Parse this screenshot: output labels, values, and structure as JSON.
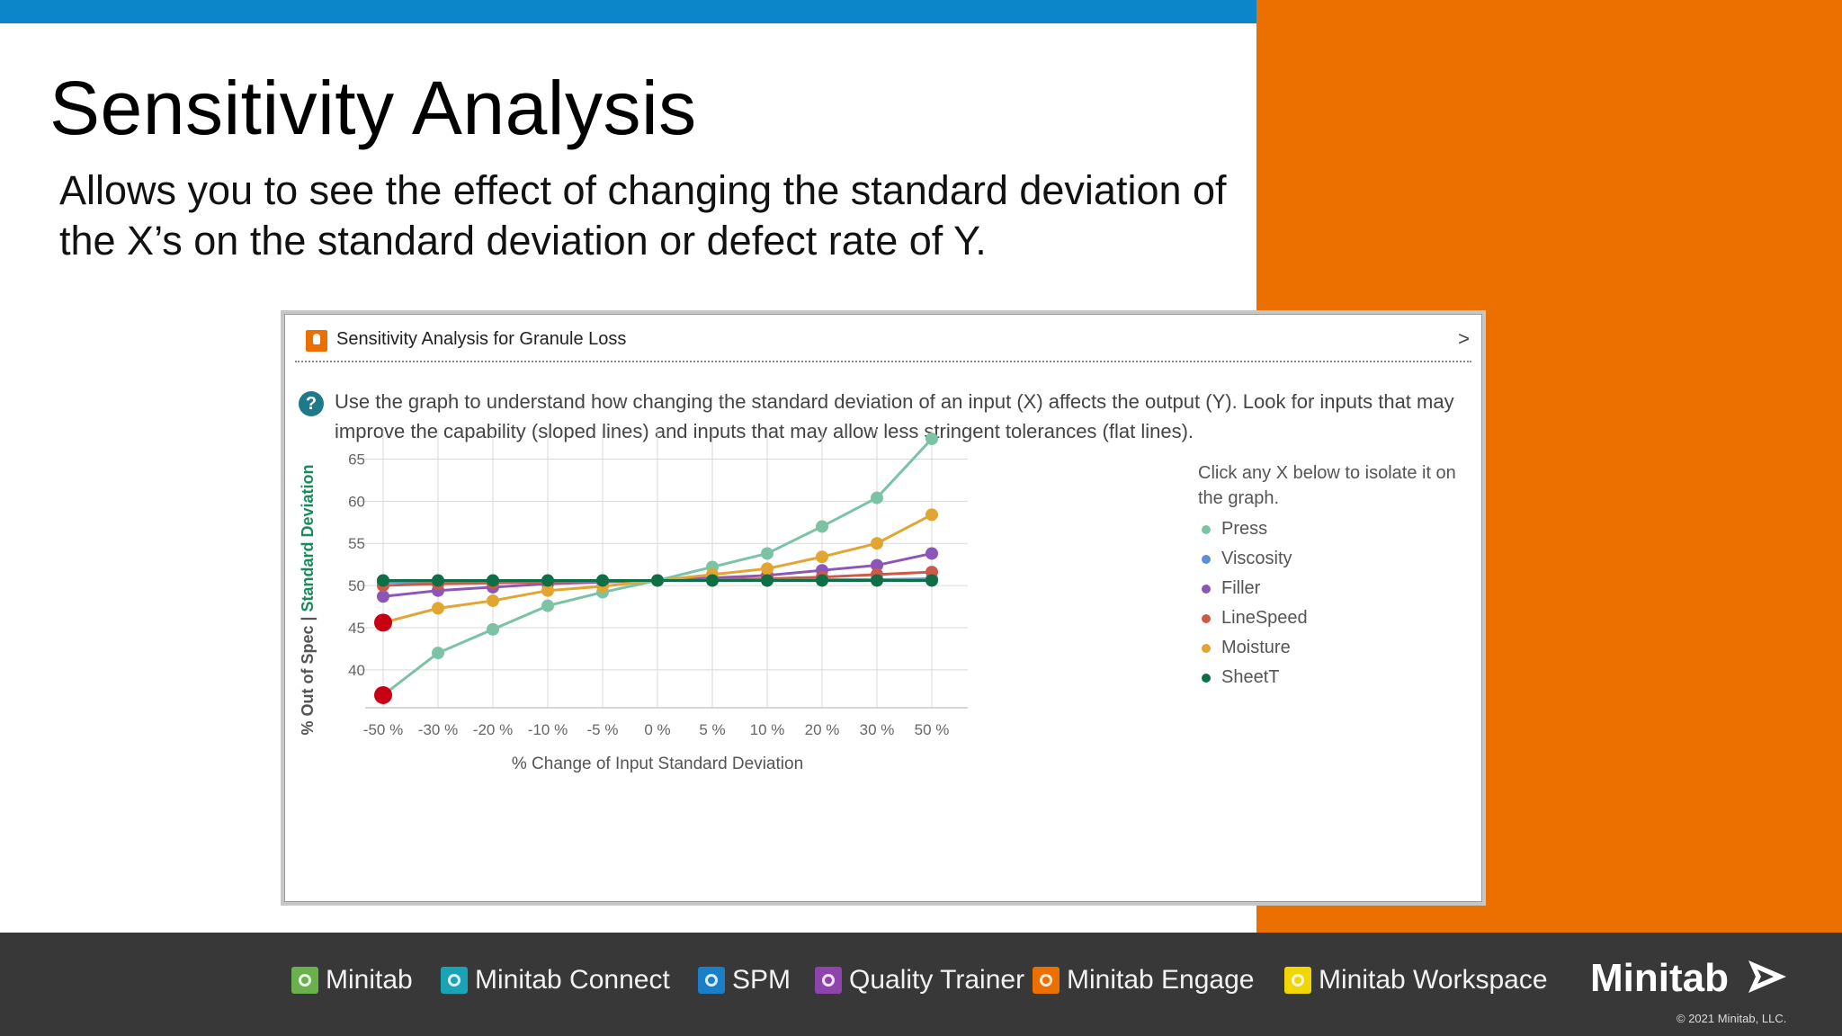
{
  "slide": {
    "title": "Sensitivity Analysis",
    "subtitle": "Allows you to see the effect of changing the standard deviation of the X’s on the standard deviation or defect rate of Y."
  },
  "panel": {
    "title": "Sensitivity Analysis for Granule Loss",
    "help_text": "Use the graph to understand how changing the standard deviation of an input (X) affects the output (Y).  Look for inputs that may improve the capability (sloped lines) and inputs that may allow less stringent tolerances (flat lines).",
    "chevron": ">"
  },
  "legend": {
    "title": "Click any X below to isolate it on the graph.",
    "items": [
      "Press",
      "Viscosity",
      "Filler",
      "LineSpeed",
      "Moisture",
      "SheetT"
    ]
  },
  "chart_data": {
    "type": "line",
    "x": [
      "-50 %",
      "-30 %",
      "-20 %",
      "-10 %",
      "-5 %",
      "0 %",
      "5 %",
      "10 %",
      "20 %",
      "30 %",
      "50 %"
    ],
    "xlabel": "% Change of Input Standard Deviation",
    "ylabel_left": "% Out of Spec |",
    "ylabel_right": "Standard Deviation",
    "yticks": [
      40,
      45,
      50,
      55,
      60,
      65
    ],
    "ylim": [
      35.5,
      67.5
    ],
    "grid": true,
    "legend_position": "right",
    "series": [
      {
        "name": "Press",
        "color": "#7cc3a6",
        "values": [
          37.0,
          42.0,
          44.8,
          47.6,
          49.2,
          50.6,
          52.2,
          53.8,
          57.0,
          60.4,
          67.4
        ]
      },
      {
        "name": "Viscosity",
        "color": "#5b8fd6",
        "values": [
          50.4,
          50.4,
          50.4,
          50.5,
          50.5,
          50.6,
          50.6,
          50.6,
          50.7,
          50.7,
          50.8
        ]
      },
      {
        "name": "Filler",
        "color": "#8b56b8",
        "values": [
          48.7,
          49.4,
          49.8,
          50.2,
          50.4,
          50.6,
          50.9,
          51.2,
          51.8,
          52.4,
          53.8
        ]
      },
      {
        "name": "LineSpeed",
        "color": "#cd5a48",
        "values": [
          50.0,
          50.2,
          50.3,
          50.4,
          50.5,
          50.6,
          50.7,
          50.8,
          51.0,
          51.3,
          51.6
        ]
      },
      {
        "name": "Moisture",
        "color": "#e3a532",
        "values": [
          45.6,
          47.3,
          48.2,
          49.4,
          49.9,
          50.6,
          51.3,
          52.0,
          53.4,
          55.0,
          58.4
        ]
      },
      {
        "name": "SheetT",
        "color": "#0e6e46",
        "values": [
          50.6,
          50.6,
          50.6,
          50.6,
          50.6,
          50.6,
          50.6,
          50.6,
          50.6,
          50.6,
          50.6
        ]
      }
    ],
    "highlights": [
      {
        "x": "-50 %",
        "value": 45.6,
        "color": "#c80014"
      },
      {
        "x": "-50 %",
        "value": 37.0,
        "color": "#c80014"
      }
    ]
  },
  "footer": {
    "brands": [
      {
        "name": "Minitab",
        "color": "#6ab04c"
      },
      {
        "name": "Minitab Connect",
        "color": "#1aa3b5"
      },
      {
        "name": "SPM",
        "color": "#1a7ec8"
      },
      {
        "name": "Quality Trainer",
        "color": "#8e44ad"
      },
      {
        "name": "Minitab Engage",
        "color": "#ec7000"
      },
      {
        "name": "Minitab Workspace",
        "color": "#f2d600"
      }
    ],
    "logo": "Minitab",
    "copyright": "© 2021 Minitab, LLC."
  }
}
